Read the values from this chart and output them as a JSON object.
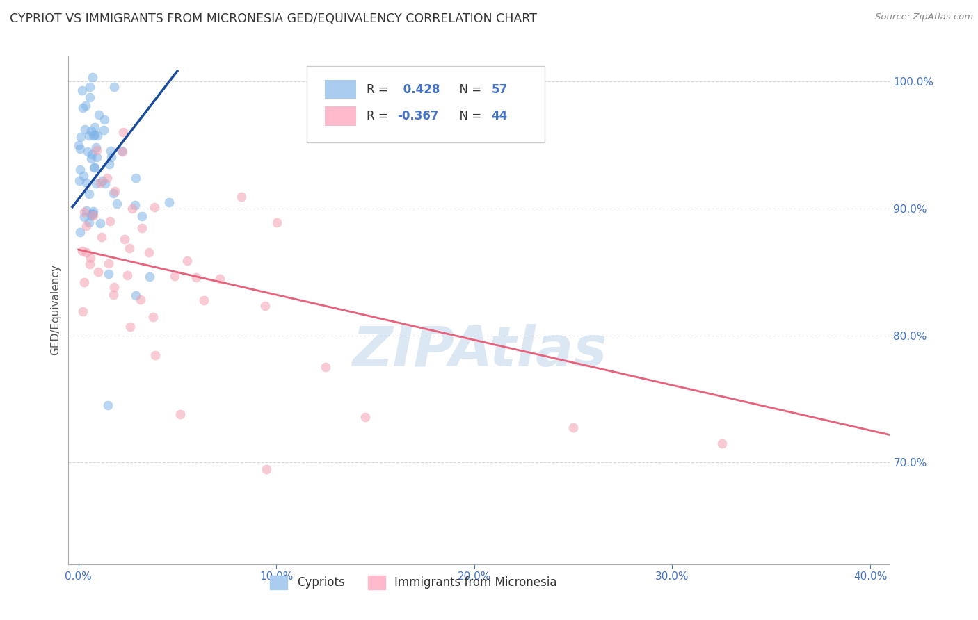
{
  "title": "CYPRIOT VS IMMIGRANTS FROM MICRONESIA GED/EQUIVALENCY CORRELATION CHART",
  "source": "Source: ZipAtlas.com",
  "ylabel": "GED/Equivalency",
  "xlim": [
    -0.5,
    41.0
  ],
  "ylim": [
    62.0,
    102.0
  ],
  "xticks": [
    0.0,
    10.0,
    20.0,
    30.0,
    40.0
  ],
  "yticks": [
    70.0,
    80.0,
    90.0,
    100.0
  ],
  "blue_R": 0.428,
  "blue_N": 57,
  "pink_R": -0.367,
  "pink_N": 44,
  "blue_color": "#7EB3E8",
  "pink_color": "#F4A0B0",
  "blue_line_color": "#1A4A9A",
  "pink_line_color": "#E8607A",
  "watermark": "ZIPAtlas",
  "watermark_color": "#C5D8EE",
  "grid_color": "#CCCCCC",
  "background_color": "#FFFFFF",
  "title_color": "#333333",
  "source_color": "#888888",
  "figsize": [
    14.06,
    8.92
  ],
  "dpi": 100,
  "tick_color": "#4472C4",
  "legend_r1": "R =  0.428",
  "legend_n1": "N = 57",
  "legend_r2": "R = -0.367",
  "legend_n2": "N = 44"
}
